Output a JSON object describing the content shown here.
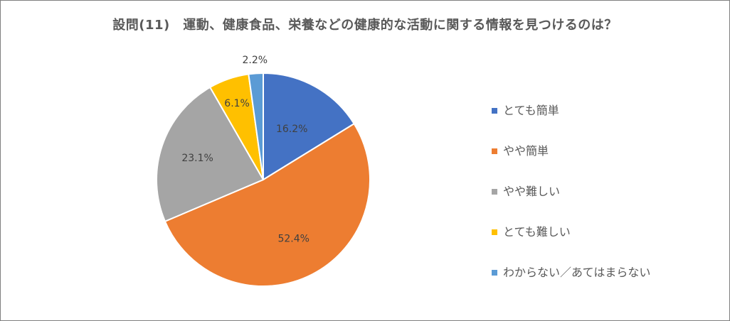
{
  "chart_data": {
    "type": "pie",
    "title": "設問(11)　運動、健康食品、栄養などの健康的な活動に関する情報を見つけるのは？",
    "start_angle_deg": 0,
    "direction": "clockwise",
    "slices": [
      {
        "label": "とても簡単",
        "value": 16.2,
        "display": "16.2%",
        "color": "#4472C4"
      },
      {
        "label": "やや簡単",
        "value": 52.4,
        "display": "52.4%",
        "color": "#ED7D31"
      },
      {
        "label": "やや難しい",
        "value": 23.1,
        "display": "23.1%",
        "color": "#A5A5A5"
      },
      {
        "label": "とても難しい",
        "value": 6.1,
        "display": "6.1%",
        "color": "#FFC000"
      },
      {
        "label": "わからない／あてはまらない",
        "value": 2.2,
        "display": "2.2%",
        "color": "#5B9BD5"
      }
    ],
    "legend_position": "right"
  }
}
